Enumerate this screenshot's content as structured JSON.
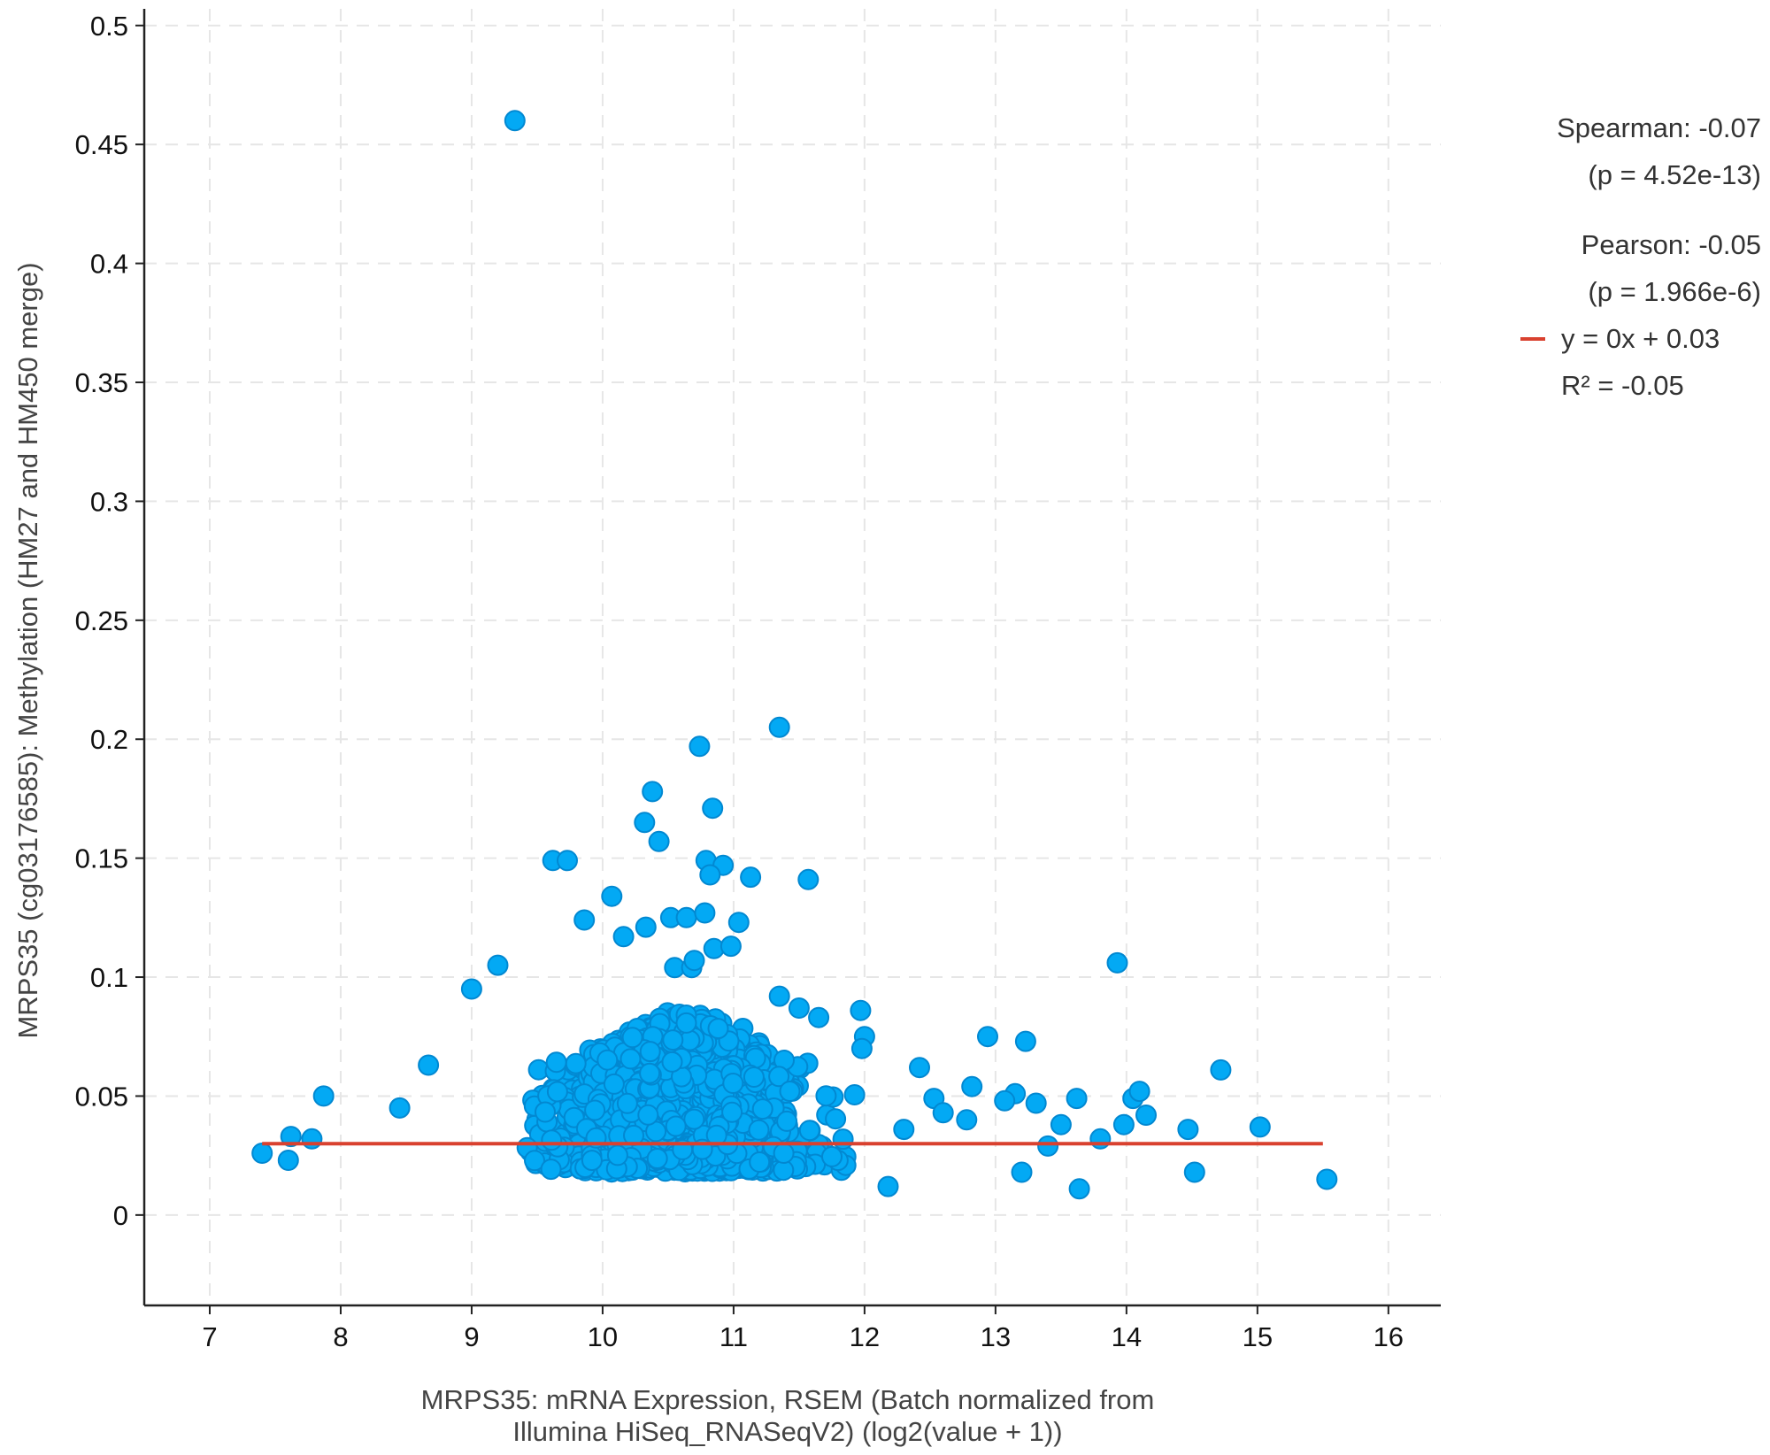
{
  "colors": {
    "point_fill": "#03a9f4",
    "point_stroke": "#0288d1",
    "fit_line": "#d9412f",
    "grid": "#e6e6e6",
    "axis": "#222222"
  },
  "legend": {
    "spearman": "Spearman: -0.07",
    "spearman_p": "(p = 4.52e-13)",
    "pearson": "Pearson: -0.05",
    "pearson_p": "(p = 1.966e-6)",
    "fit_label": "y = 0x + 0.03",
    "r2_label": "R² = -0.05"
  },
  "chart_data": {
    "type": "scatter",
    "title": "",
    "xlabel_line1": "MRPS35: mRNA Expression, RSEM (Batch normalized from",
    "xlabel_line2": "Illumina HiSeq_RNASeqV2) (log2(value + 1))",
    "ylabel": "MRPS35 (cg03176585): Methylation (HM27 and HM450 merge)",
    "xlim": [
      6.5,
      16.4
    ],
    "ylim": [
      -0.038,
      0.507
    ],
    "xticks": [
      7,
      8,
      9,
      10,
      11,
      12,
      13,
      14,
      15,
      16
    ],
    "yticks": [
      0,
      0.05,
      0.1,
      0.15,
      0.2,
      0.25,
      0.3,
      0.35,
      0.4,
      0.45,
      0.5
    ],
    "ytick_labels": [
      "0",
      "0.05",
      "0.1",
      "0.15",
      "0.2",
      "0.25",
      "0.3",
      "0.35",
      "0.4",
      "0.45",
      "0.5"
    ],
    "grid": true,
    "fit_line": {
      "slope": 0,
      "intercept": 0.03,
      "x_start": 7.4,
      "x_end": 15.5
    },
    "outliers": [
      [
        9.33,
        0.46
      ],
      [
        11.35,
        0.205
      ],
      [
        10.74,
        0.197
      ],
      [
        10.38,
        0.178
      ],
      [
        10.84,
        0.171
      ],
      [
        10.32,
        0.165
      ],
      [
        10.43,
        0.157
      ],
      [
        9.62,
        0.149
      ],
      [
        9.73,
        0.149
      ],
      [
        10.79,
        0.149
      ],
      [
        10.92,
        0.147
      ],
      [
        10.82,
        0.143
      ],
      [
        11.13,
        0.142
      ],
      [
        11.57,
        0.141
      ],
      [
        10.07,
        0.134
      ],
      [
        10.52,
        0.125
      ],
      [
        10.64,
        0.125
      ],
      [
        9.86,
        0.124
      ],
      [
        10.78,
        0.127
      ],
      [
        11.04,
        0.123
      ],
      [
        10.33,
        0.121
      ],
      [
        10.16,
        0.117
      ],
      [
        10.85,
        0.112
      ],
      [
        10.98,
        0.113
      ],
      [
        10.55,
        0.104
      ],
      [
        10.68,
        0.104
      ],
      [
        13.93,
        0.106
      ],
      [
        9.2,
        0.105
      ],
      [
        9.0,
        0.095
      ],
      [
        10.7,
        0.107
      ],
      [
        11.35,
        0.092
      ],
      [
        11.5,
        0.087
      ],
      [
        11.65,
        0.083
      ],
      [
        11.97,
        0.086
      ],
      [
        12.94,
        0.075
      ],
      [
        13.23,
        0.073
      ],
      [
        12.0,
        0.075
      ],
      [
        11.98,
        0.07
      ],
      [
        12.42,
        0.062
      ],
      [
        14.72,
        0.061
      ],
      [
        8.67,
        0.063
      ],
      [
        7.87,
        0.05
      ],
      [
        12.82,
        0.054
      ],
      [
        13.15,
        0.051
      ],
      [
        13.62,
        0.049
      ],
      [
        14.05,
        0.049
      ],
      [
        14.1,
        0.052
      ],
      [
        14.15,
        0.042
      ],
      [
        13.31,
        0.047
      ],
      [
        13.07,
        0.048
      ],
      [
        12.53,
        0.049
      ],
      [
        13.98,
        0.038
      ],
      [
        15.02,
        0.037
      ],
      [
        14.47,
        0.036
      ],
      [
        14.52,
        0.018
      ],
      [
        15.53,
        0.015
      ],
      [
        13.64,
        0.011
      ],
      [
        12.18,
        0.012
      ],
      [
        13.2,
        0.018
      ],
      [
        13.8,
        0.032
      ],
      [
        7.4,
        0.026
      ],
      [
        7.6,
        0.023
      ],
      [
        7.62,
        0.033
      ],
      [
        7.78,
        0.032
      ],
      [
        8.45,
        0.045
      ],
      [
        13.4,
        0.029
      ],
      [
        13.5,
        0.038
      ],
      [
        12.78,
        0.04
      ],
      [
        12.3,
        0.036
      ],
      [
        12.6,
        0.043
      ]
    ],
    "cluster": {
      "n": 2200,
      "x_center": 10.6,
      "x_spread": 0.75,
      "y_base": 0.018,
      "y_scale": 0.013,
      "note": "dense cloud of samples, x ≈ 8–13, y ≈ 0.015–0.09"
    }
  }
}
